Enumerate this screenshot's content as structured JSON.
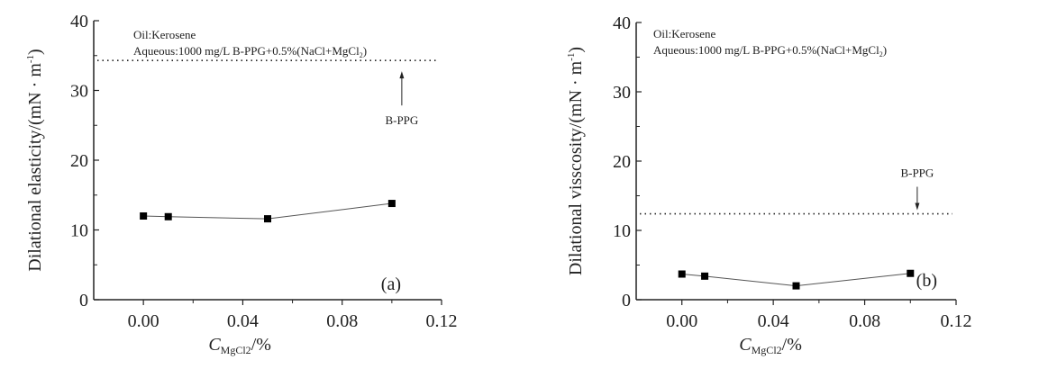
{
  "chart_data": [
    {
      "type": "line",
      "panel_label": "(a)",
      "ylabel": "Dilational elasticity/(mN · m",
      "ylabel_sup": "-1",
      "ylabel_close": ")",
      "xlabel_main": "C",
      "xlabel_sub": "MgCl2",
      "xlabel_unit": "/%",
      "xlim": [
        -0.02,
        0.12
      ],
      "ylim": [
        0,
        40
      ],
      "xticks": [
        0.0,
        0.04,
        0.08,
        0.12
      ],
      "xtick_labels": [
        "0.00",
        "0.04",
        "0.08",
        "0.12"
      ],
      "yticks": [
        0,
        10,
        20,
        30,
        40
      ],
      "ytick_labels": [
        "0",
        "10",
        "20",
        "30",
        "40"
      ],
      "annotation_line1": "Oil:Kerosene",
      "annotation_line2": "Aqueous:1000 mg/L B-PPG+0.5%(NaCl+MgCl",
      "annotation_sub": "2",
      "annotation_close": ")",
      "reference": {
        "label": "B-PPG",
        "value": 34.3,
        "style": "dotted",
        "arrow": "up",
        "arrow_x": 0.104
      },
      "x": [
        0.0,
        0.01,
        0.05,
        0.1
      ],
      "y": [
        12.0,
        11.9,
        11.6,
        13.8
      ],
      "marker": "square",
      "color": "#000000"
    },
    {
      "type": "line",
      "panel_label": "(b)",
      "ylabel": "Dilational visscosity/(mN · m",
      "ylabel_sup": "-1",
      "ylabel_close": ")",
      "xlabel_main": "C",
      "xlabel_sub": "MgCl2",
      "xlabel_unit": "/%",
      "xlim": [
        -0.02,
        0.12
      ],
      "ylim": [
        0,
        40
      ],
      "xticks": [
        0.0,
        0.04,
        0.08,
        0.12
      ],
      "xtick_labels": [
        "0.00",
        "0.04",
        "0.08",
        "0.12"
      ],
      "yticks": [
        0,
        10,
        20,
        30,
        40
      ],
      "ytick_labels": [
        "0",
        "10",
        "20",
        "30",
        "40"
      ],
      "annotation_line1": "Oil:Kerosene",
      "annotation_line2": "Aqueous:1000 mg/L B-PPG+0.5%(NaCl+MgCl",
      "annotation_sub": "2",
      "annotation_close": ")",
      "reference": {
        "label": "B-PPG",
        "value": 12.4,
        "style": "dotted",
        "arrow": "down",
        "arrow_x": 0.103
      },
      "x": [
        0.0,
        0.01,
        0.05,
        0.1
      ],
      "y": [
        3.7,
        3.4,
        2.0,
        3.8
      ],
      "marker": "square",
      "color": "#000000"
    }
  ]
}
